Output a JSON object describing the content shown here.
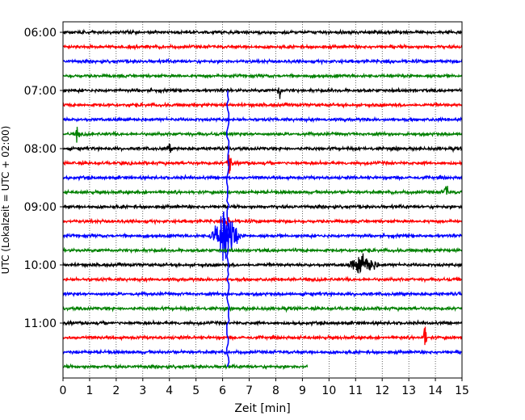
{
  "chart_data": {
    "type": "line",
    "title": "",
    "xlabel": "Zeit  [min]",
    "ylabel": "UTC (Lokalzeit = UTC + 02:00)",
    "xlim": [
      0,
      15
    ],
    "x_ticks": [
      "0",
      "1",
      "2",
      "3",
      "4",
      "5",
      "6",
      "7",
      "8",
      "9",
      "10",
      "11",
      "12",
      "13",
      "14",
      "15"
    ],
    "y_ticks": [
      "06:00",
      "07:00",
      "08:00",
      "09:00",
      "10:00",
      "11:00"
    ],
    "grid": "vertical dotted",
    "trace_interval_min": 15,
    "colors": [
      "#000000",
      "#ff0000",
      "#0000ff",
      "#008000"
    ],
    "series": [
      {
        "start": "06:00",
        "color": "#000000",
        "end_min": 15,
        "events": []
      },
      {
        "start": "06:15",
        "color": "#ff0000",
        "end_min": 15,
        "events": []
      },
      {
        "start": "06:30",
        "color": "#0000ff",
        "end_min": 15,
        "events": []
      },
      {
        "start": "06:45",
        "color": "#008000",
        "end_min": 15,
        "events": []
      },
      {
        "start": "07:00",
        "color": "#000000",
        "end_min": 15,
        "events": [
          {
            "t": 8.15,
            "amp": 0.9,
            "dur": 0.1
          }
        ]
      },
      {
        "start": "07:15",
        "color": "#ff0000",
        "end_min": 15,
        "events": []
      },
      {
        "start": "07:30",
        "color": "#0000ff",
        "end_min": 15,
        "events": []
      },
      {
        "start": "07:45",
        "color": "#008000",
        "end_min": 15,
        "events": [
          {
            "t": 0.55,
            "amp": 0.8,
            "dur": 0.08
          }
        ]
      },
      {
        "start": "08:00",
        "color": "#000000",
        "end_min": 15,
        "events": [
          {
            "t": 4.0,
            "amp": 0.5,
            "dur": 0.08
          }
        ]
      },
      {
        "start": "08:15",
        "color": "#ff0000",
        "end_min": 15,
        "events": [
          {
            "t": 6.25,
            "amp": 1.4,
            "dur": 0.12
          }
        ]
      },
      {
        "start": "08:30",
        "color": "#0000ff",
        "end_min": 15,
        "events": []
      },
      {
        "start": "08:45",
        "color": "#008000",
        "end_min": 15,
        "events": [
          {
            "t": 14.4,
            "amp": 0.5,
            "dur": 0.15
          }
        ]
      },
      {
        "start": "09:00",
        "color": "#000000",
        "end_min": 15,
        "events": []
      },
      {
        "start": "09:15",
        "color": "#ff0000",
        "end_min": 15,
        "events": [
          {
            "t": 6.2,
            "amp": 0.6,
            "dur": 0.1
          }
        ]
      },
      {
        "start": "09:30",
        "color": "#0000ff",
        "end_min": 15,
        "events": [
          {
            "t": 6.1,
            "amp": 2.2,
            "dur": 0.6
          }
        ]
      },
      {
        "start": "09:45",
        "color": "#008000",
        "end_min": 15,
        "events": []
      },
      {
        "start": "10:00",
        "color": "#000000",
        "end_min": 15,
        "events": [
          {
            "t": 11.3,
            "amp": 1.0,
            "dur": 0.6
          }
        ]
      },
      {
        "start": "10:15",
        "color": "#ff0000",
        "end_min": 15,
        "events": []
      },
      {
        "start": "10:30",
        "color": "#0000ff",
        "end_min": 15,
        "events": []
      },
      {
        "start": "10:45",
        "color": "#008000",
        "end_min": 15,
        "events": []
      },
      {
        "start": "11:00",
        "color": "#000000",
        "end_min": 15,
        "events": []
      },
      {
        "start": "11:15",
        "color": "#ff0000",
        "end_min": 15,
        "events": [
          {
            "t": 13.6,
            "amp": 0.9,
            "dur": 0.1
          }
        ]
      },
      {
        "start": "11:30",
        "color": "#0000ff",
        "end_min": 15,
        "events": []
      },
      {
        "start": "11:45",
        "color": "#008000",
        "end_min": 9.2,
        "events": []
      }
    ],
    "overlay_spike": {
      "t": 6.2,
      "color": "#0000ff",
      "from": "07:00",
      "to": "11:45"
    }
  }
}
